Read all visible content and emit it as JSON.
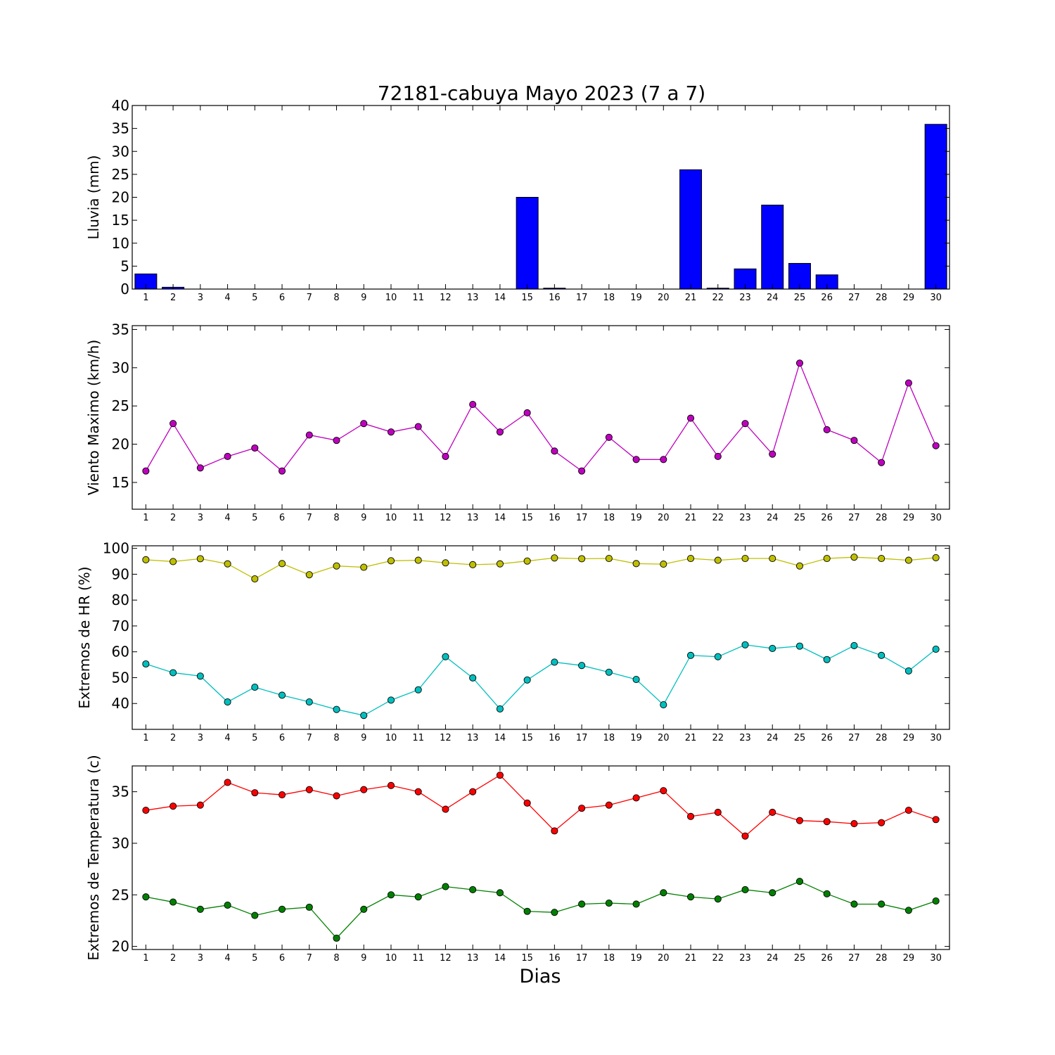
{
  "title": "72181-cabuya Mayo 2023  (7 a 7)",
  "xlabel": "Dias",
  "chart_data": [
    {
      "type": "bar",
      "ylabel": "Lluvia (mm)",
      "x": [
        1,
        2,
        3,
        4,
        5,
        6,
        7,
        8,
        9,
        10,
        11,
        12,
        13,
        14,
        15,
        16,
        17,
        18,
        19,
        20,
        21,
        22,
        23,
        24,
        25,
        26,
        27,
        28,
        29,
        30
      ],
      "ylim": [
        0,
        40
      ],
      "yticks": [
        0,
        5,
        10,
        15,
        20,
        25,
        30,
        35,
        40
      ],
      "grid": false,
      "series": [
        {
          "color": "#0000ff",
          "values": [
            3.3,
            0.4,
            0,
            0,
            0,
            0,
            0,
            0,
            0,
            0,
            0,
            0,
            0,
            0,
            20.0,
            0.2,
            0,
            0,
            0,
            0,
            26.0,
            0.2,
            4.4,
            18.3,
            5.6,
            3.1,
            0,
            0,
            0,
            35.9
          ]
        }
      ]
    },
    {
      "type": "line",
      "ylabel": "Viento Maximo (km/h)",
      "x": [
        1,
        2,
        3,
        4,
        5,
        6,
        7,
        8,
        9,
        10,
        11,
        12,
        13,
        14,
        15,
        16,
        17,
        18,
        19,
        20,
        21,
        22,
        23,
        24,
        25,
        26,
        27,
        28,
        29,
        30
      ],
      "ylim": [
        11.5,
        35.5
      ],
      "yticks": [
        15,
        20,
        25,
        30,
        35
      ],
      "grid": false,
      "series": [
        {
          "color": "#bf00bf",
          "values": [
            16.5,
            22.7,
            16.9,
            18.4,
            19.5,
            16.5,
            21.2,
            20.5,
            22.7,
            21.6,
            22.3,
            18.4,
            25.2,
            21.6,
            24.1,
            19.1,
            16.5,
            20.9,
            18.0,
            18.0,
            23.4,
            18.4,
            22.7,
            18.7,
            30.6,
            21.9,
            20.5,
            17.6,
            28.0,
            19.8
          ]
        }
      ]
    },
    {
      "type": "line",
      "ylabel": "Extremos de HR (%)",
      "x": [
        1,
        2,
        3,
        4,
        5,
        6,
        7,
        8,
        9,
        10,
        11,
        12,
        13,
        14,
        15,
        16,
        17,
        18,
        19,
        20,
        21,
        22,
        23,
        24,
        25,
        26,
        27,
        28,
        29,
        30
      ],
      "ylim": [
        30,
        101
      ],
      "yticks": [
        40,
        50,
        60,
        70,
        80,
        90,
        100
      ],
      "grid": false,
      "series": [
        {
          "color": "#bfbf00",
          "values": [
            95.6,
            94.9,
            96.0,
            94.0,
            88.2,
            94.1,
            89.8,
            93.2,
            92.7,
            95.2,
            95.4,
            94.4,
            93.7,
            94.0,
            95.1,
            96.3,
            96.0,
            96.1,
            94.1,
            93.9,
            96.1,
            95.4,
            96.1,
            96.1,
            93.2,
            96.1,
            96.6,
            96.1,
            95.4,
            96.4
          ]
        },
        {
          "color": "#00bfbf",
          "values": [
            55.3,
            51.9,
            50.6,
            40.6,
            46.3,
            43.2,
            40.6,
            37.7,
            35.4,
            41.3,
            45.3,
            58.1,
            49.9,
            37.9,
            49.1,
            56.0,
            54.7,
            52.1,
            49.3,
            39.5,
            58.6,
            58.1,
            62.7,
            61.3,
            62.2,
            57.0,
            62.4,
            58.6,
            52.6,
            61.0
          ]
        }
      ]
    },
    {
      "type": "line",
      "ylabel": "Extremos de Temperatura (c)",
      "x": [
        1,
        2,
        3,
        4,
        5,
        6,
        7,
        8,
        9,
        10,
        11,
        12,
        13,
        14,
        15,
        16,
        17,
        18,
        19,
        20,
        21,
        22,
        23,
        24,
        25,
        26,
        27,
        28,
        29,
        30
      ],
      "ylim": [
        19.7,
        37.5
      ],
      "yticks": [
        20,
        25,
        30,
        35
      ],
      "grid": false,
      "series": [
        {
          "color": "#ff0000",
          "values": [
            33.2,
            33.6,
            33.7,
            35.9,
            34.9,
            34.7,
            35.2,
            34.6,
            35.2,
            35.6,
            35.0,
            33.3,
            35.0,
            36.6,
            33.9,
            31.2,
            33.4,
            33.7,
            34.4,
            35.1,
            32.6,
            33.0,
            30.7,
            33.0,
            32.2,
            32.1,
            31.9,
            32.0,
            33.2,
            32.3
          ]
        },
        {
          "color": "#008000",
          "values": [
            24.8,
            24.3,
            23.6,
            24.0,
            23.0,
            23.6,
            23.8,
            20.8,
            23.6,
            25.0,
            24.8,
            25.8,
            25.5,
            25.2,
            23.4,
            23.3,
            24.1,
            24.2,
            24.1,
            25.2,
            24.8,
            24.6,
            25.5,
            25.2,
            26.3,
            25.1,
            24.1,
            24.1,
            23.5,
            24.4
          ]
        }
      ]
    }
  ]
}
